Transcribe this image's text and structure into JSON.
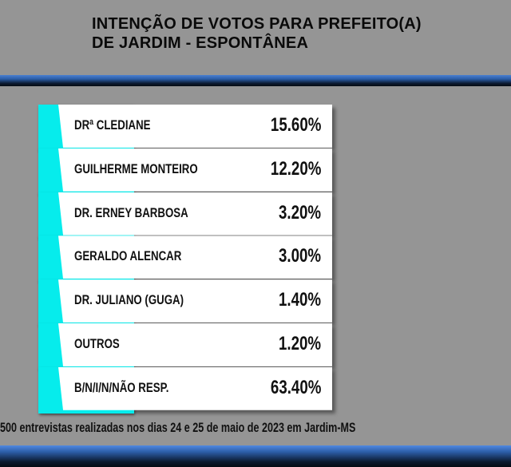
{
  "title_line1": "INTENÇÃO DE VOTOS PARA PREFEITO(A)",
  "title_line2": "DE JARDIM - ESPONTÂNEA",
  "colors": {
    "background": "#959595",
    "accent": "#06ecec",
    "band": "#2c5ea8",
    "card": "#ffffff"
  },
  "chart_data": {
    "type": "table",
    "title": "INTENÇÃO DE VOTOS PARA PREFEITO(A) DE JARDIM - ESPONTÂNEA",
    "rows": [
      {
        "name": "DRª CLEDIANE",
        "value": 15.6,
        "label": "15.60%"
      },
      {
        "name": "GUILHERME MONTEIRO",
        "value": 12.2,
        "label": "12.20%"
      },
      {
        "name": "DR. ERNEY BARBOSA",
        "value": 3.2,
        "label": "3.20%"
      },
      {
        "name": "GERALDO ALENCAR",
        "value": 3.0,
        "label": "3.00%"
      },
      {
        "name": "DR. JULIANO (GUGA)",
        "value": 1.4,
        "label": "1.40%"
      },
      {
        "name": "OUTROS",
        "value": 1.2,
        "label": "1.20%"
      },
      {
        "name": "B/N/I/N/NÃO RESP.",
        "value": 63.4,
        "label": "63.40%"
      }
    ]
  },
  "footer": "500 entrevistas realizadas nos dias 24 e 25 de maio de 2023 em Jardim-MS"
}
